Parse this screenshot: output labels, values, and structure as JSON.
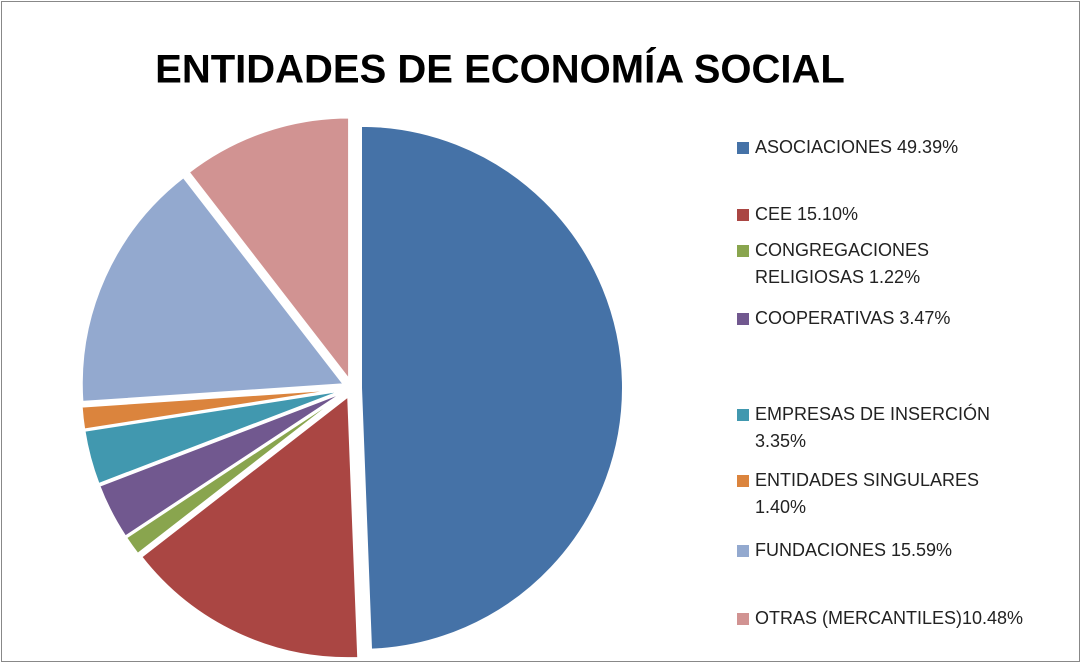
{
  "chart_data": {
    "type": "pie",
    "title": "ENTIDADES DE ECONOMÍA SOCIAL",
    "categories": [
      "ASOCIACIONES 49.39%",
      "CEE 15.10%",
      "CONGREGACIONES RELIGIOSAS 1.22%",
      "COOPERATIVAS 3.47%",
      "EMPRESAS DE INSERCIÓN 3.35%",
      "ENTIDADES SINGULARES 1.40%",
      "FUNDACIONES 15.59%",
      "OTRAS (MERCANTILES)10.48%"
    ],
    "values": [
      49.39,
      15.1,
      1.22,
      3.47,
      3.35,
      1.4,
      15.59,
      10.48
    ],
    "colors": [
      "#4572a7",
      "#aa4643",
      "#89a54e",
      "#71588f",
      "#4198af",
      "#db843d",
      "#93a9cf",
      "#d19392"
    ],
    "legend": "right"
  }
}
